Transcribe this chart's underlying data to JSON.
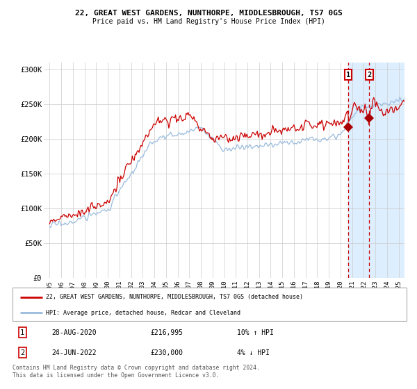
{
  "title": "22, GREAT WEST GARDENS, NUNTHORPE, MIDDLESBROUGH, TS7 0GS",
  "subtitle": "Price paid vs. HM Land Registry's House Price Index (HPI)",
  "legend_line1": "22, GREAT WEST GARDENS, NUNTHORPE, MIDDLESBROUGH, TS7 0GS (detached house)",
  "legend_line2": "HPI: Average price, detached house, Redcar and Cleveland",
  "annotation1_date": "28-AUG-2020",
  "annotation1_price": "£216,995",
  "annotation1_hpi": "10% ↑ HPI",
  "annotation1_year": 2020.66,
  "annotation1_value": 216995,
  "annotation2_date": "24-JUN-2022",
  "annotation2_price": "£230,000",
  "annotation2_hpi": "4% ↓ HPI",
  "annotation2_year": 2022.47,
  "annotation2_value": 230000,
  "red_line_color": "#cc0000",
  "blue_line_color": "#99bbdd",
  "shaded_region_color": "#ddeeff",
  "vline_color": "#cc0000",
  "marker_color": "#aa0000",
  "ylim": [
    0,
    310000
  ],
  "yticks": [
    0,
    50000,
    100000,
    150000,
    200000,
    250000,
    300000
  ],
  "ytick_labels": [
    "£0",
    "£50K",
    "£100K",
    "£150K",
    "£200K",
    "£250K",
    "£300K"
  ],
  "xlim_start": 1994.5,
  "xlim_end": 2025.5,
  "xticks": [
    1995,
    1996,
    1997,
    1998,
    1999,
    2000,
    2001,
    2002,
    2003,
    2004,
    2005,
    2006,
    2007,
    2008,
    2009,
    2010,
    2011,
    2012,
    2013,
    2014,
    2015,
    2016,
    2017,
    2018,
    2019,
    2020,
    2021,
    2022,
    2023,
    2024,
    2025
  ],
  "background_color": "#ffffff",
  "grid_color": "#cccccc",
  "footer_text": "Contains HM Land Registry data © Crown copyright and database right 2024.\nThis data is licensed under the Open Government Licence v3.0.",
  "shaded_start": 2020.66,
  "shaded_end": 2025.5
}
